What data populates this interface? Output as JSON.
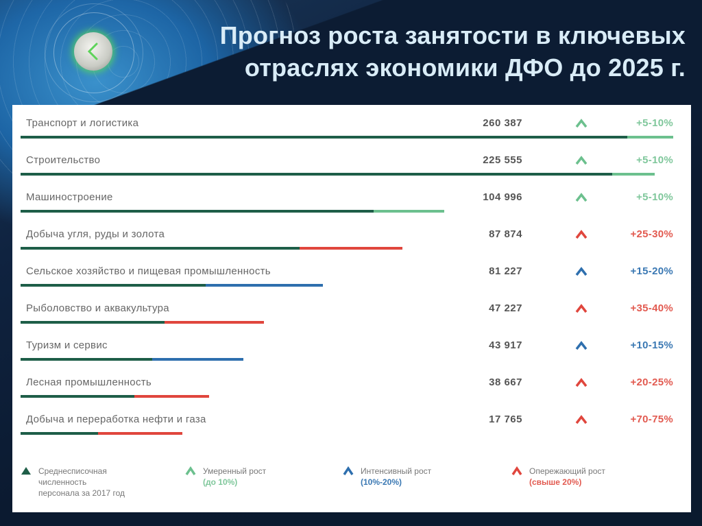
{
  "header": {
    "title_line1": "Прогноз роста занятости в ключевых",
    "title_line2": "отраслях экономики ДФО до 2025 г.",
    "back_button_icon": "chevron-left-icon"
  },
  "colors": {
    "dark_green": "#1e5e48",
    "moderate": "#6cc08e",
    "intensive": "#2e6fae",
    "leading": "#e0463d",
    "moderate_text": "#7fc79b",
    "intensive_text": "#3a78b3",
    "leading_text": "#e25a50"
  },
  "rows": [
    {
      "label": "Транспорт и логистика",
      "value": "260 387",
      "growth": "+5-10%",
      "category": "moderate",
      "bar_base_end": 915,
      "bar_total_end": 982
    },
    {
      "label": "Строительство",
      "value": "225 555",
      "growth": "+5-10%",
      "category": "moderate",
      "bar_base_end": 893,
      "bar_total_end": 955
    },
    {
      "label": "Машиностроение",
      "value": "104 996",
      "growth": "+5-10%",
      "category": "moderate",
      "bar_base_end": 545,
      "bar_total_end": 648
    },
    {
      "label": "Добыча угля, руды и золота",
      "value": "87 874",
      "growth": "+25-30%",
      "category": "leading",
      "bar_base_end": 437,
      "bar_total_end": 587
    },
    {
      "label": "Сельское хозяйство и пищевая промышленность",
      "value": "81 227",
      "growth": "+15-20%",
      "category": "intensive",
      "bar_base_end": 300,
      "bar_total_end": 471
    },
    {
      "label": "Рыболовство и аквакультура",
      "value": "47 227",
      "growth": "+35-40%",
      "category": "leading",
      "bar_base_end": 240,
      "bar_total_end": 385
    },
    {
      "label": "Туризм и сервис",
      "value": "43 917",
      "growth": "+10-15%",
      "category": "intensive",
      "bar_base_end": 222,
      "bar_total_end": 355
    },
    {
      "label": "Лесная промышленность",
      "value": "38 667",
      "growth": "+20-25%",
      "category": "leading",
      "bar_base_end": 196,
      "bar_total_end": 305
    },
    {
      "label": "Добыча и переработка нефти и газа",
      "value": "17 765",
      "growth": "+70-75%",
      "category": "leading",
      "bar_base_end": 143,
      "bar_total_end": 266
    }
  ],
  "legend": [
    {
      "icon": "filled-triangle-icon",
      "line1": "Среднесписочная",
      "line2": "численность",
      "line3": "персонала за 2017 год"
    },
    {
      "icon": "chevron-up-icon",
      "line1": "Умеренный рост",
      "line2": "(до 10%)"
    },
    {
      "icon": "chevron-up-icon",
      "line1": "Интенсивный рост",
      "line2": "(10%-20%)"
    },
    {
      "icon": "chevron-up-icon",
      "line1": "Опережающий рост",
      "line2": "(свыше 20%)"
    }
  ]
}
